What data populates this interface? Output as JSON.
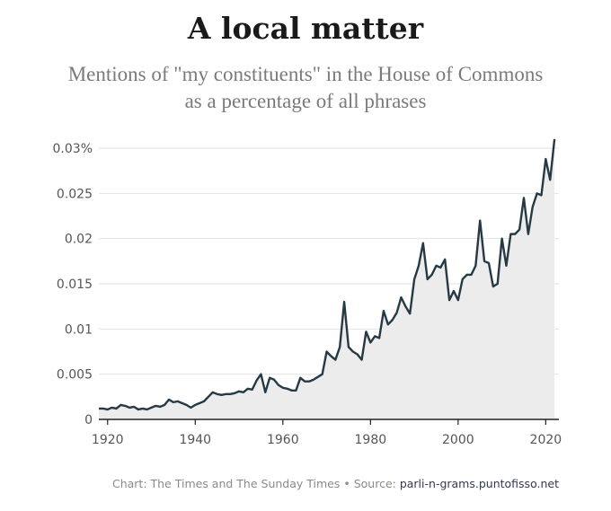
{
  "header": {
    "title": "A local matter",
    "subtitle_line1": "Mentions of \"my constituents\" in the House of Commons",
    "subtitle_line2": "as a percentage of all phrases"
  },
  "footer": {
    "credit": "Chart: The Times and The Sunday Times",
    "separator": " • ",
    "source_label": "Source: ",
    "source_link": "parli-n-grams.puntofisso.net"
  },
  "colors": {
    "line": "#263a45",
    "area": "#ececec",
    "grid": "#e2e2e2",
    "axis": "#222222"
  },
  "chart_data": {
    "type": "area",
    "title": "",
    "xlabel": "",
    "ylabel": "",
    "xlim": [
      1918,
      2023
    ],
    "ylim": [
      0,
      0.03
    ],
    "x_ticks": [
      1920,
      1940,
      1960,
      1980,
      2000,
      2020
    ],
    "y_ticks": [
      0,
      0.005,
      0.01,
      0.015,
      0.02,
      0.025,
      0.03
    ],
    "y_tick_labels": [
      "0",
      "0.005",
      "0.01",
      "0.015",
      "0.02",
      "0.025",
      "0.03%"
    ],
    "grid": true,
    "x": [
      1918,
      1919,
      1920,
      1921,
      1922,
      1923,
      1924,
      1925,
      1926,
      1927,
      1928,
      1929,
      1930,
      1931,
      1932,
      1933,
      1934,
      1935,
      1936,
      1937,
      1938,
      1939,
      1940,
      1941,
      1942,
      1943,
      1944,
      1945,
      1946,
      1947,
      1948,
      1949,
      1950,
      1951,
      1952,
      1953,
      1954,
      1955,
      1956,
      1957,
      1958,
      1959,
      1960,
      1961,
      1962,
      1963,
      1964,
      1965,
      1966,
      1967,
      1968,
      1969,
      1970,
      1971,
      1972,
      1973,
      1974,
      1975,
      1976,
      1977,
      1978,
      1979,
      1980,
      1981,
      1982,
      1983,
      1984,
      1985,
      1986,
      1987,
      1988,
      1989,
      1990,
      1991,
      1992,
      1993,
      1994,
      1995,
      1996,
      1997,
      1998,
      1999,
      2000,
      2001,
      2002,
      2003,
      2004,
      2005,
      2006,
      2007,
      2008,
      2009,
      2010,
      2011,
      2012,
      2013,
      2014,
      2015,
      2016,
      2017,
      2018,
      2019,
      2020,
      2021,
      2022
    ],
    "series": [
      {
        "values": [
          0.0012,
          0.0012,
          0.0011,
          0.0013,
          0.0012,
          0.0016,
          0.0015,
          0.0013,
          0.0014,
          0.0011,
          0.0012,
          0.0011,
          0.0013,
          0.0015,
          0.0014,
          0.0016,
          0.0022,
          0.0019,
          0.002,
          0.0018,
          0.0016,
          0.0013,
          0.0016,
          0.0018,
          0.002,
          0.0025,
          0.003,
          0.0028,
          0.0027,
          0.0028,
          0.0028,
          0.0029,
          0.0031,
          0.003,
          0.0034,
          0.0033,
          0.0043,
          0.005,
          0.003,
          0.0046,
          0.0044,
          0.0038,
          0.0035,
          0.0034,
          0.0032,
          0.0032,
          0.0046,
          0.0042,
          0.0042,
          0.0044,
          0.0047,
          0.005,
          0.0075,
          0.007,
          0.0066,
          0.008,
          0.013,
          0.008,
          0.0075,
          0.0072,
          0.0066,
          0.0097,
          0.0085,
          0.0092,
          0.009,
          0.012,
          0.0105,
          0.011,
          0.0118,
          0.0135,
          0.0125,
          0.0117,
          0.0155,
          0.017,
          0.0195,
          0.0155,
          0.016,
          0.017,
          0.0168,
          0.0177,
          0.0132,
          0.0142,
          0.0132,
          0.0155,
          0.016,
          0.016,
          0.017,
          0.022,
          0.0175,
          0.0173,
          0.0147,
          0.015,
          0.02,
          0.017,
          0.0205,
          0.0205,
          0.021,
          0.0245,
          0.0205,
          0.0235,
          0.025,
          0.0248,
          0.0288,
          0.0265,
          0.031
        ]
      }
    ]
  }
}
